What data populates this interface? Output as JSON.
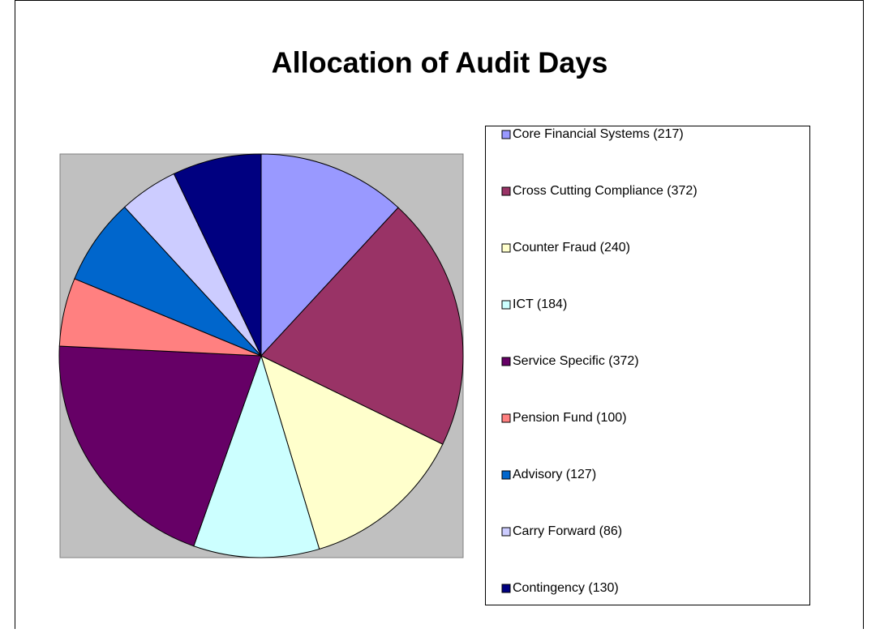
{
  "chart_data": {
    "type": "pie",
    "title": "Allocation of Audit Days",
    "categories": [
      "Core Financial Systems (217)",
      "Cross Cutting Compliance (372)",
      "Counter Fraud (240)",
      "ICT (184)",
      "Service Specific (372)",
      "Pension Fund (100)",
      "Advisory (127)",
      "Carry Forward (86)",
      "Contingency (130)"
    ],
    "values": [
      217,
      372,
      240,
      184,
      372,
      100,
      127,
      86,
      130
    ],
    "colors": [
      "#9999ff",
      "#993366",
      "#ffffcc",
      "#ccffff",
      "#660066",
      "#ff8080",
      "#0066cc",
      "#ccccff",
      "#000080"
    ],
    "legend": "right"
  }
}
